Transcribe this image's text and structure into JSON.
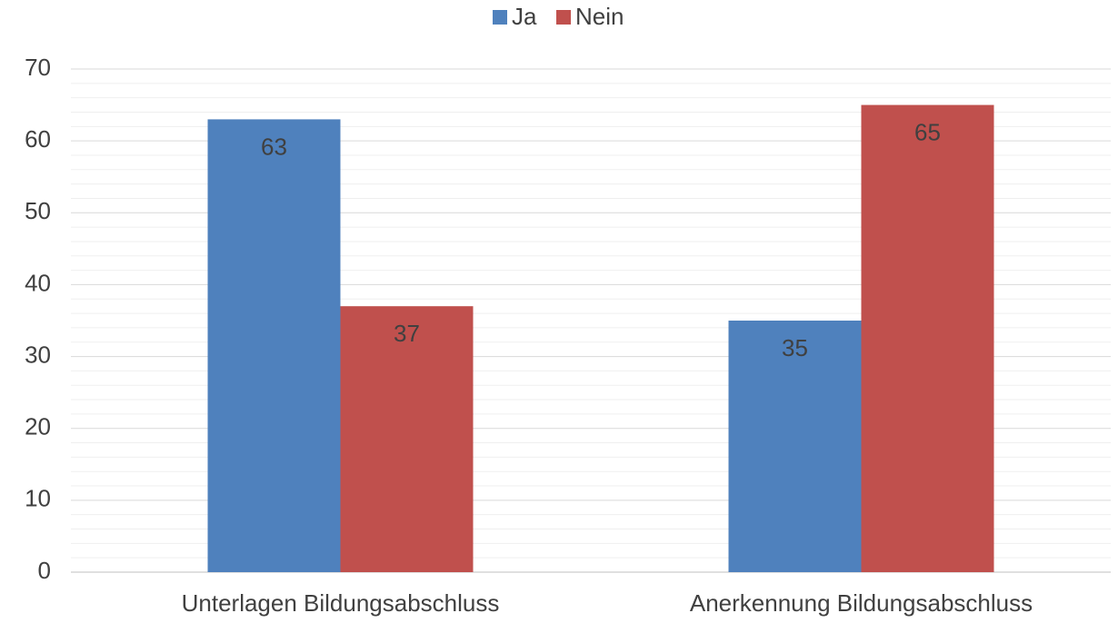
{
  "chart_data": {
    "type": "bar",
    "categories": [
      "Unterlagen Bildungsabschluss",
      "Anerkennung Bildungsabschluss"
    ],
    "series": [
      {
        "name": "Ja",
        "color": "#4f81bd",
        "values": [
          63,
          35
        ]
      },
      {
        "name": "Nein",
        "color": "#c0504d",
        "values": [
          37,
          65
        ]
      }
    ],
    "ylim": [
      0,
      70
    ],
    "yticks": [
      0,
      10,
      20,
      30,
      40,
      50,
      60,
      70
    ],
    "grid": true,
    "legend": "top"
  }
}
